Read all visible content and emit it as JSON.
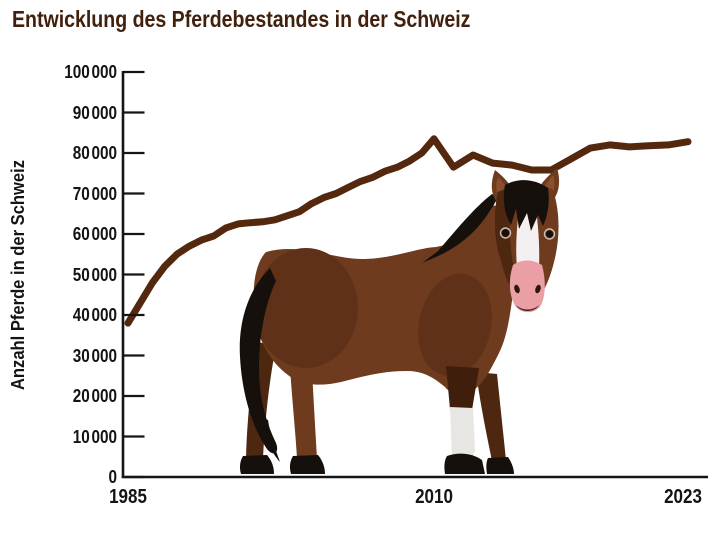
{
  "title": "Entwicklung des Pferdebestandes in der Schweiz",
  "y_axis": {
    "title": "Anzahl Pferde in der Schweiz",
    "ticks": [
      {
        "value": 0,
        "label": "0"
      },
      {
        "value": 10000,
        "label": "10 000"
      },
      {
        "value": 20000,
        "label": "20 000"
      },
      {
        "value": 30000,
        "label": "30 000"
      },
      {
        "value": 40000,
        "label": "40 000"
      },
      {
        "value": 50000,
        "label": "50 000"
      },
      {
        "value": 60000,
        "label": "60 000"
      },
      {
        "value": 70000,
        "label": "70 000"
      },
      {
        "value": 80000,
        "label": "80 000"
      },
      {
        "value": 90000,
        "label": "90 000"
      },
      {
        "value": 100000,
        "label": "100 000"
      }
    ]
  },
  "x_axis": {
    "ticks": [
      {
        "year": 1985,
        "label": "1985"
      },
      {
        "year": 2010,
        "label": "2010"
      },
      {
        "year": 2023,
        "label": "2023"
      }
    ]
  },
  "colors": {
    "title": "#42200E",
    "axis": "#151515",
    "trend_line": "#54280E",
    "horse_body": "#6E3B1E",
    "horse_shading": "#5F3118",
    "horse_dark": "#4E2710",
    "horse_leg_dark": "#3F1E0C",
    "horse_black": "#16100C",
    "horse_white": "#F4EFF0",
    "horse_sock": "#E8E6E2",
    "horse_muzzle": "#EA9FA7",
    "horse_inner_ear": "#8A4F2E",
    "horse_mouth": "#4A2410",
    "horse_nostril": "#2E1609",
    "horse_eye_ring": "#CDBFB2"
  },
  "chart_data": {
    "type": "line",
    "title": "Entwicklung des Pferdebestandes in der Schweiz",
    "xlabel": "",
    "ylabel": "Anzahl Pferde in der Schweiz",
    "ylim": [
      0,
      100000
    ],
    "y_tick_step": 10000,
    "x_tick_labels": [
      "1985",
      "2010",
      "2023"
    ],
    "grid": false,
    "legend": "none",
    "line_color": "#54280E",
    "x": [
      1985,
      1986,
      1987,
      1988,
      1989,
      1990,
      1991,
      1992,
      1993,
      1994,
      1995,
      1996,
      1997,
      1998,
      1999,
      2000,
      2001,
      2002,
      2003,
      2004,
      2005,
      2006,
      2007,
      2008,
      2009,
      2010,
      2011,
      2012,
      2013,
      2014,
      2015,
      2016,
      2017,
      2018,
      2019,
      2020,
      2021,
      2022,
      2023
    ],
    "values": [
      38000,
      43000,
      48000,
      52000,
      55000,
      57000,
      58500,
      59500,
      61500,
      62500,
      62800,
      63000,
      63500,
      64500,
      65500,
      67500,
      69000,
      70000,
      71500,
      73000,
      74000,
      75500,
      76500,
      78000,
      80000,
      83500,
      76500,
      79500,
      77500,
      77000,
      75800,
      75800,
      78500,
      81200,
      82000,
      81500,
      81800,
      82000,
      82800
    ]
  }
}
